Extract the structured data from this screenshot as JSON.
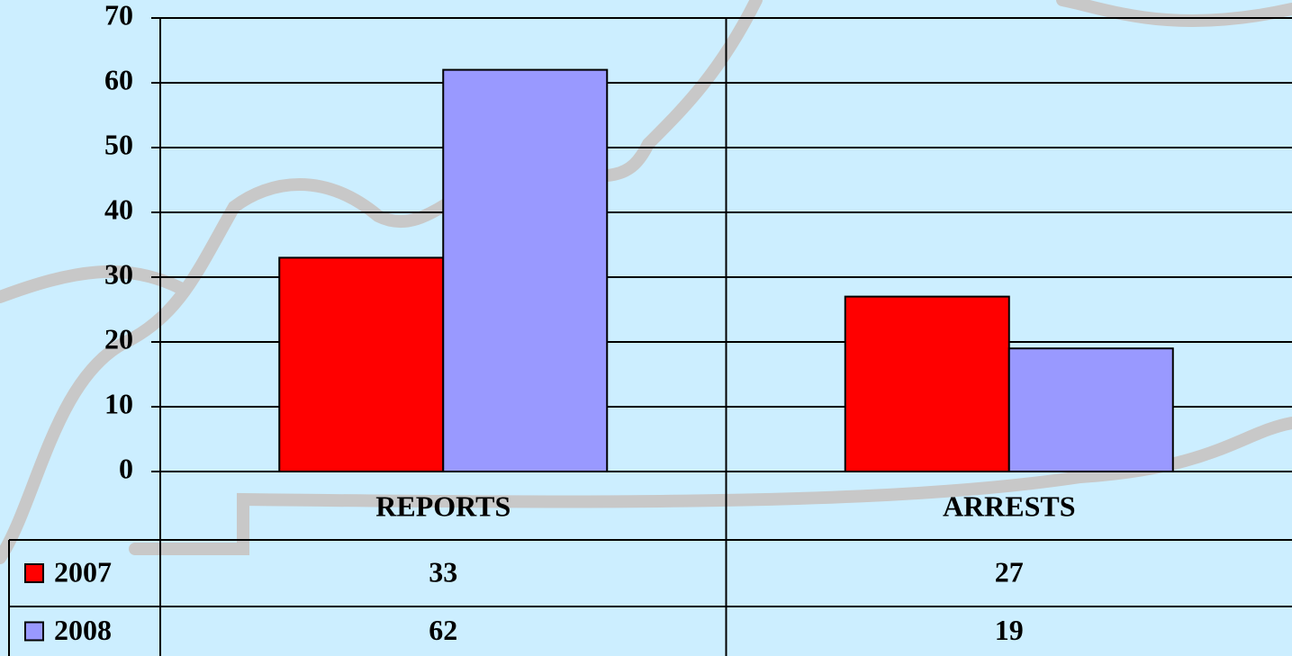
{
  "chart_data": {
    "type": "bar",
    "categories": [
      "REPORTS",
      "ARRESTS"
    ],
    "series": [
      {
        "name": "2007",
        "color": "#ff0000",
        "values": [
          33,
          27
        ]
      },
      {
        "name": "2008",
        "color": "#9999ff",
        "values": [
          62,
          19
        ]
      }
    ],
    "ylim": [
      0,
      70
    ],
    "yticks": [
      0,
      10,
      20,
      30,
      40,
      50,
      60,
      70
    ],
    "grid": true
  }
}
